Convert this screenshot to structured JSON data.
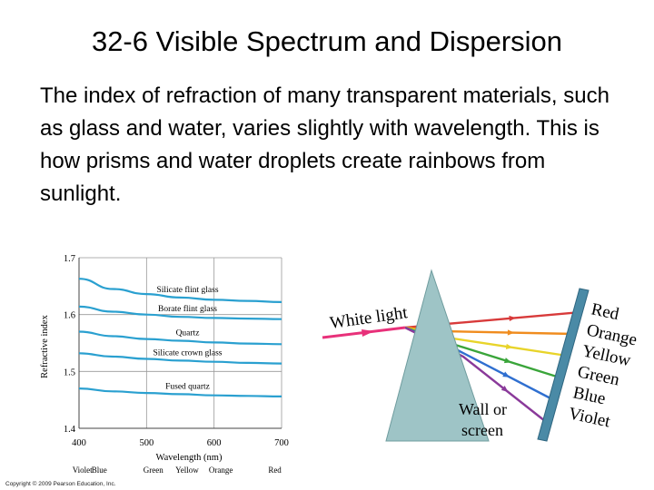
{
  "slide": {
    "title": "32-6 Visible Spectrum and Dispersion",
    "body": "The index of refraction of many transparent materials, such as glass and water, varies slightly with wavelength. This is how prisms and water droplets create rainbows from sunlight."
  },
  "chart_data": {
    "type": "line",
    "title": "",
    "xlabel": "Wavelength (nm)",
    "ylabel": "Refractive index",
    "xlim": [
      400,
      700
    ],
    "ylim": [
      1.4,
      1.7
    ],
    "x_ticks": [
      "400",
      "500",
      "600",
      "700"
    ],
    "y_ticks": [
      "1.7",
      "1.6",
      "1.5",
      "1.4"
    ],
    "color_labels": [
      "Violet",
      "Blue",
      "Green",
      "Yellow",
      "Orange",
      "Red"
    ],
    "grid": true,
    "series": [
      {
        "name": "Silicate flint glass",
        "x": [
          400,
          450,
          500,
          550,
          600,
          650,
          700
        ],
        "values": [
          1.663,
          1.645,
          1.636,
          1.63,
          1.626,
          1.624,
          1.622
        ]
      },
      {
        "name": "Borate flint glass",
        "x": [
          400,
          450,
          500,
          550,
          600,
          650,
          700
        ],
        "values": [
          1.614,
          1.605,
          1.6,
          1.596,
          1.594,
          1.593,
          1.592
        ]
      },
      {
        "name": "Quartz",
        "x": [
          400,
          450,
          500,
          550,
          600,
          650,
          700
        ],
        "values": [
          1.57,
          1.562,
          1.557,
          1.554,
          1.551,
          1.549,
          1.548
        ]
      },
      {
        "name": "Silicate crown glass",
        "x": [
          400,
          450,
          500,
          550,
          600,
          650,
          700
        ],
        "values": [
          1.532,
          1.526,
          1.522,
          1.519,
          1.517,
          1.515,
          1.514
        ]
      },
      {
        "name": "Fused quartz",
        "x": [
          400,
          450,
          500,
          550,
          600,
          650,
          700
        ],
        "values": [
          1.47,
          1.465,
          1.462,
          1.46,
          1.458,
          1.457,
          1.456
        ]
      }
    ]
  },
  "prism_diagram": {
    "white_light_label": "White light",
    "spectrum_labels": [
      "Red",
      "Orange",
      "Yellow",
      "Green",
      "Blue",
      "Violet"
    ],
    "spectrum_colors": [
      "#d83a3a",
      "#f08c1e",
      "#e8d42a",
      "#3aa53a",
      "#2f6fd0",
      "#8a3a9a"
    ],
    "white_light_color": "#e8317a",
    "prism_color": "#9ec4c6",
    "screen_color": "#4a8aa6",
    "wall_label_lines": [
      "Wall or",
      "screen"
    ]
  },
  "copyright": "Copyright © 2009 Pearson Education, Inc.",
  "colors": {
    "curve": "#2aa0d0",
    "grid": "#999999"
  }
}
